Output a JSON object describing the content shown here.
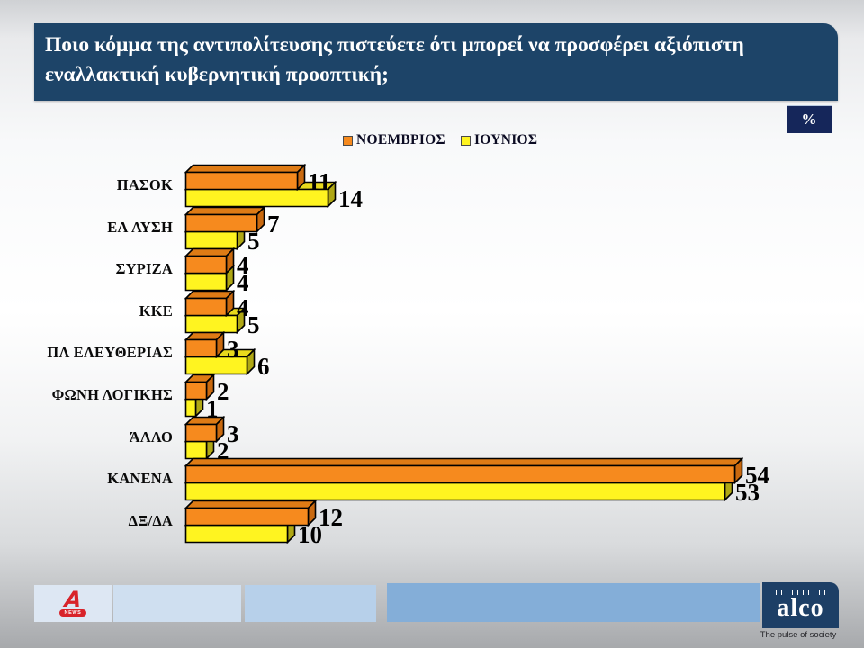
{
  "slide": {
    "title_line1": "Ποιο κόμμα της αντιπολίτευσης πιστεύετε ότι μπορεί να προσφέρει αξιόπιστη",
    "title_line2": "εναλλακτική κυβερνητική προοπτική;",
    "percent_badge": "%"
  },
  "chart_data": {
    "type": "bar",
    "orientation": "horizontal",
    "unit": "%",
    "title": "",
    "xlabel": "",
    "ylabel": "",
    "xlim": [
      0,
      57
    ],
    "grid": false,
    "legend_position": "top",
    "value_labels": true,
    "categories": [
      "ΠΑΣΟΚ",
      "ΕΛ ΛΥΣΗ",
      "ΣΥΡΙΖΑ",
      "ΚΚΕ",
      "ΠΛ ΕΛΕΥΘΕΡΙΑΣ",
      "ΦΩΝΗ ΛΟΓΙΚΗΣ",
      "ΆΛΛΟ",
      "ΚΑΝΕΝΑ",
      "ΔΞ/ΔΑ"
    ],
    "series": [
      {
        "name": "ΝΟΕΜΒΡΙΟΣ",
        "color": "#F68A1E",
        "top_color": "#DE7B15",
        "side_color": "#C9690F",
        "values": [
          11,
          7,
          4,
          4,
          3,
          2,
          3,
          54,
          12
        ]
      },
      {
        "name": "ΙΟΥΝΙΟΣ",
        "color": "#FFF420",
        "top_color": "#E8D91C",
        "side_color": "#AFA714",
        "values": [
          14,
          5,
          4,
          5,
          6,
          1,
          2,
          53,
          10
        ]
      }
    ]
  },
  "footer": {
    "alpha_news": {
      "letter": "A",
      "news_label": "NEWS"
    },
    "alco": {
      "name": "alco",
      "tagline": "The pulse of society",
      "brand_navy": "#1d3f66",
      "brand_red": "#d8232a"
    }
  }
}
